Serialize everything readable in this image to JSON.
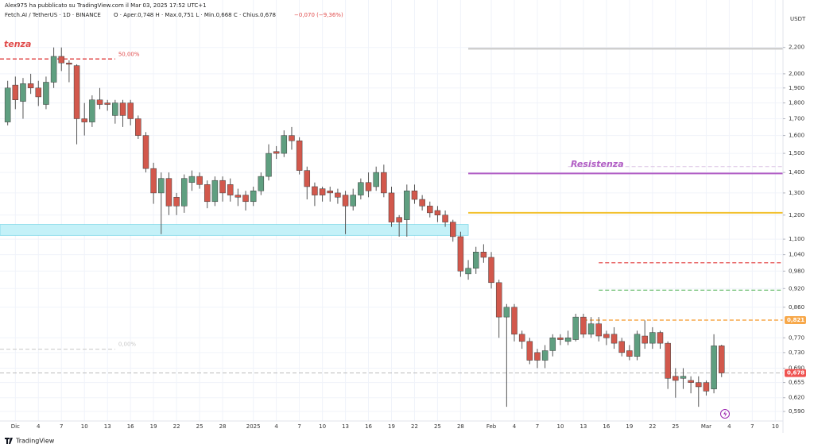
{
  "header": {
    "publisher": "Alex975 ha pubblicato su TradingView.com il Mar 03, 2025 17:52 UTC+1",
    "symbol": "Fetch.AI / TetherUS · 1D · BINANCE",
    "ohlc": "O · Aper.0,748  H · Max.0,751  L · Min.0,668  C · Chius.0,678",
    "change": "−0,070 (−9,36%)"
  },
  "footer": "TradingView",
  "chart_data": {
    "type": "candlestick",
    "log_scale": true,
    "grid": true,
    "currency": "USDT",
    "up_color": "#5f9f80",
    "down_color": "#d2584c",
    "wick_color": "#555555",
    "x": [
      "2024-11-30",
      "2024-12-01",
      "2024-12-02",
      "2024-12-03",
      "2024-12-04",
      "2024-12-05",
      "2024-12-06",
      "2024-12-07",
      "2024-12-08",
      "2024-12-09",
      "2024-12-10",
      "2024-12-11",
      "2024-12-12",
      "2024-12-13",
      "2024-12-14",
      "2024-12-15",
      "2024-12-16",
      "2024-12-17",
      "2024-12-18",
      "2024-12-19",
      "2024-12-20",
      "2024-12-21",
      "2024-12-22",
      "2024-12-23",
      "2024-12-24",
      "2024-12-25",
      "2024-12-26",
      "2024-12-27",
      "2024-12-28",
      "2024-12-29",
      "2024-12-30",
      "2024-12-31",
      "2025-01-01",
      "2025-01-02",
      "2025-01-03",
      "2025-01-04",
      "2025-01-05",
      "2025-01-06",
      "2025-01-07",
      "2025-01-08",
      "2025-01-09",
      "2025-01-10",
      "2025-01-11",
      "2025-01-12",
      "2025-01-13",
      "2025-01-14",
      "2025-01-15",
      "2025-01-16",
      "2025-01-17",
      "2025-01-18",
      "2025-01-19",
      "2025-01-20",
      "2025-01-21",
      "2025-01-22",
      "2025-01-23",
      "2025-01-24",
      "2025-01-25",
      "2025-01-26",
      "2025-01-27",
      "2025-01-28",
      "2025-01-29",
      "2025-01-30",
      "2025-01-31",
      "2025-02-01",
      "2025-02-02",
      "2025-02-03",
      "2025-02-04",
      "2025-02-05",
      "2025-02-06",
      "2025-02-07",
      "2025-02-08",
      "2025-02-09",
      "2025-02-10",
      "2025-02-11",
      "2025-02-12",
      "2025-02-13",
      "2025-02-14",
      "2025-02-15",
      "2025-02-16",
      "2025-02-17",
      "2025-02-18",
      "2025-02-19",
      "2025-02-20",
      "2025-02-21",
      "2025-02-22",
      "2025-02-23",
      "2025-02-24",
      "2025-02-25",
      "2025-02-26",
      "2025-02-27",
      "2025-02-28",
      "2025-03-01",
      "2025-03-02",
      "2025-03-03"
    ],
    "open": [
      1.68,
      1.92,
      1.81,
      1.93,
      1.9,
      1.79,
      1.94,
      2.13,
      2.08,
      2.06,
      1.7,
      1.68,
      1.82,
      1.8,
      1.72,
      1.8,
      1.8,
      1.7,
      1.6,
      1.42,
      1.3,
      1.37,
      1.28,
      1.24,
      1.35,
      1.38,
      1.34,
      1.26,
      1.36,
      1.34,
      1.29,
      1.29,
      1.26,
      1.31,
      1.38,
      1.51,
      1.5,
      1.6,
      1.57,
      1.41,
      1.33,
      1.32,
      1.31,
      1.3,
      1.29,
      1.24,
      1.29,
      1.35,
      1.33,
      1.4,
      1.3,
      1.19,
      1.18,
      1.31,
      1.27,
      1.24,
      1.22,
      1.2,
      1.17,
      1.11,
      0.97,
      0.99,
      1.05,
      1.03,
      0.94,
      0.83,
      0.86,
      0.78,
      0.76,
      0.73,
      0.71,
      0.735,
      0.77,
      0.76,
      0.765,
      0.83,
      0.78,
      0.81,
      0.78,
      0.78,
      0.76,
      0.735,
      0.72,
      0.775,
      0.755,
      0.785,
      0.755,
      0.67,
      0.665,
      0.66,
      0.655,
      0.655,
      0.64,
      0.748
    ],
    "high": [
      1.95,
      1.98,
      1.97,
      2.0,
      1.95,
      1.98,
      2.2,
      2.2,
      2.1,
      2.07,
      1.8,
      1.85,
      1.9,
      1.82,
      1.82,
      1.82,
      1.82,
      1.72,
      1.62,
      1.45,
      1.4,
      1.4,
      1.3,
      1.39,
      1.41,
      1.4,
      1.36,
      1.38,
      1.38,
      1.37,
      1.32,
      1.31,
      1.33,
      1.4,
      1.55,
      1.54,
      1.63,
      1.65,
      1.59,
      1.43,
      1.35,
      1.33,
      1.33,
      1.32,
      1.31,
      1.32,
      1.37,
      1.4,
      1.43,
      1.44,
      1.33,
      1.2,
      1.34,
      1.34,
      1.29,
      1.26,
      1.24,
      1.22,
      1.18,
      1.13,
      1.02,
      1.07,
      1.08,
      1.05,
      0.95,
      0.87,
      0.87,
      0.79,
      0.77,
      0.74,
      0.75,
      0.78,
      0.78,
      0.79,
      0.84,
      0.84,
      0.83,
      0.83,
      0.79,
      0.8,
      0.77,
      0.75,
      0.79,
      0.82,
      0.8,
      0.79,
      0.76,
      0.69,
      0.69,
      0.67,
      0.67,
      0.66,
      0.78,
      0.751
    ],
    "low": [
      1.66,
      1.76,
      1.7,
      1.86,
      1.78,
      1.76,
      1.9,
      2.02,
      1.94,
      1.55,
      1.6,
      1.65,
      1.76,
      1.75,
      1.67,
      1.65,
      1.66,
      1.58,
      1.4,
      1.25,
      1.12,
      1.2,
      1.2,
      1.21,
      1.31,
      1.32,
      1.23,
      1.24,
      1.26,
      1.26,
      1.24,
      1.22,
      1.24,
      1.29,
      1.36,
      1.47,
      1.48,
      1.52,
      1.39,
      1.27,
      1.24,
      1.26,
      1.26,
      1.25,
      1.12,
      1.22,
      1.27,
      1.28,
      1.31,
      1.28,
      1.15,
      1.11,
      1.11,
      1.25,
      1.22,
      1.19,
      1.17,
      1.15,
      1.09,
      0.96,
      0.95,
      0.97,
      1.01,
      0.92,
      0.77,
      0.6,
      0.76,
      0.74,
      0.7,
      0.69,
      0.69,
      0.72,
      0.75,
      0.75,
      0.76,
      0.77,
      0.77,
      0.76,
      0.75,
      0.74,
      0.72,
      0.71,
      0.71,
      0.74,
      0.74,
      0.74,
      0.64,
      0.62,
      0.64,
      0.63,
      0.6,
      0.625,
      0.63,
      0.668
    ],
    "close": [
      1.9,
      1.82,
      1.93,
      1.9,
      1.84,
      1.94,
      2.13,
      2.08,
      2.07,
      1.7,
      1.68,
      1.82,
      1.79,
      1.79,
      1.8,
      1.72,
      1.7,
      1.6,
      1.42,
      1.3,
      1.37,
      1.24,
      1.24,
      1.37,
      1.38,
      1.34,
      1.26,
      1.36,
      1.3,
      1.29,
      1.28,
      1.26,
      1.31,
      1.38,
      1.5,
      1.5,
      1.6,
      1.57,
      1.41,
      1.33,
      1.29,
      1.29,
      1.3,
      1.28,
      1.24,
      1.29,
      1.35,
      1.31,
      1.4,
      1.3,
      1.17,
      1.17,
      1.31,
      1.27,
      1.24,
      1.21,
      1.2,
      1.17,
      1.11,
      0.98,
      0.99,
      1.05,
      1.03,
      0.94,
      0.83,
      0.86,
      0.78,
      0.76,
      0.71,
      0.71,
      0.735,
      0.77,
      0.765,
      0.77,
      0.83,
      0.78,
      0.81,
      0.775,
      0.77,
      0.755,
      0.73,
      0.72,
      0.78,
      0.755,
      0.785,
      0.755,
      0.665,
      0.66,
      0.67,
      0.655,
      0.645,
      0.635,
      0.748,
      0.678
    ],
    "xlim": [
      "2024-11-29",
      "2025-03-11"
    ],
    "xticks": [
      {
        "value": "2024-12-01",
        "label": "Dic"
      },
      {
        "value": "2024-12-04",
        "label": "4"
      },
      {
        "value": "2024-12-07",
        "label": "7"
      },
      {
        "value": "2024-12-10",
        "label": "10"
      },
      {
        "value": "2024-12-13",
        "label": "13"
      },
      {
        "value": "2024-12-16",
        "label": "16"
      },
      {
        "value": "2024-12-19",
        "label": "19"
      },
      {
        "value": "2024-12-22",
        "label": "22"
      },
      {
        "value": "2024-12-25",
        "label": "25"
      },
      {
        "value": "2024-12-28",
        "label": "28"
      },
      {
        "value": "2025-01-01",
        "label": "2025"
      },
      {
        "value": "2025-01-04",
        "label": "4"
      },
      {
        "value": "2025-01-07",
        "label": "7"
      },
      {
        "value": "2025-01-10",
        "label": "10"
      },
      {
        "value": "2025-01-13",
        "label": "13"
      },
      {
        "value": "2025-01-16",
        "label": "16"
      },
      {
        "value": "2025-01-19",
        "label": "19"
      },
      {
        "value": "2025-01-22",
        "label": "22"
      },
      {
        "value": "2025-01-25",
        "label": "25"
      },
      {
        "value": "2025-01-28",
        "label": "28"
      },
      {
        "value": "2025-02-01",
        "label": "Feb"
      },
      {
        "value": "2025-02-04",
        "label": "4"
      },
      {
        "value": "2025-02-07",
        "label": "7"
      },
      {
        "value": "2025-02-10",
        "label": "10"
      },
      {
        "value": "2025-02-13",
        "label": "13"
      },
      {
        "value": "2025-02-16",
        "label": "16"
      },
      {
        "value": "2025-02-19",
        "label": "19"
      },
      {
        "value": "2025-02-22",
        "label": "22"
      },
      {
        "value": "2025-02-25",
        "label": "25"
      },
      {
        "value": "2025-03-01",
        "label": "Mar"
      },
      {
        "value": "2025-03-04",
        "label": "4"
      },
      {
        "value": "2025-03-07",
        "label": "7"
      },
      {
        "value": "2025-03-10",
        "label": "10"
      }
    ],
    "ylim": [
      0.57,
      2.48
    ],
    "yticks": [
      {
        "value": 2.2,
        "label": "2,200"
      },
      {
        "value": 2.0,
        "label": "2,000"
      },
      {
        "value": 1.9,
        "label": "1,900"
      },
      {
        "value": 1.8,
        "label": "1,800"
      },
      {
        "value": 1.7,
        "label": "1,700"
      },
      {
        "value": 1.6,
        "label": "1,600"
      },
      {
        "value": 1.5,
        "label": "1,500"
      },
      {
        "value": 1.4,
        "label": "1,400"
      },
      {
        "value": 1.3,
        "label": "1,300"
      },
      {
        "value": 1.2,
        "label": "1,200"
      },
      {
        "value": 1.1,
        "label": "1,100"
      },
      {
        "value": 1.04,
        "label": "1,040"
      },
      {
        "value": 0.98,
        "label": "0,980"
      },
      {
        "value": 0.92,
        "label": "0,920"
      },
      {
        "value": 0.86,
        "label": "0,860"
      },
      {
        "value": 0.77,
        "label": "0,770"
      },
      {
        "value": 0.73,
        "label": "0,730"
      },
      {
        "value": 0.69,
        "label": "0,690"
      },
      {
        "value": 0.655,
        "label": "0,655"
      },
      {
        "value": 0.62,
        "label": "0,620"
      },
      {
        "value": 0.59,
        "label": "0,590"
      }
    ],
    "band": {
      "low": 1.115,
      "high": 1.16,
      "from": "2024-11-29",
      "to": "2025-01-29",
      "color": "#c4f1f8",
      "edge": "#7fd9e8"
    },
    "lines": [
      {
        "value": 2.11,
        "color": "#e04b4b",
        "from": "2024-11-29",
        "to": "2024-12-14",
        "dash": true,
        "width": 1.5,
        "label": "50,00%"
      },
      {
        "value": 0.739,
        "color": "#c8c8c8",
        "from": "2024-11-29",
        "to": "2024-12-14",
        "dash": true,
        "width": 1,
        "label": "0,00%"
      },
      {
        "value": 2.19,
        "color": "#cfcfcf",
        "from": "2025-01-29",
        "to": "2025-03-11",
        "dash": false,
        "width": 2.5
      },
      {
        "value": 1.43,
        "color": "#dcc3e4",
        "from": "2025-02-11",
        "to": "2025-03-11",
        "dash": true,
        "width": 1
      },
      {
        "value": 1.395,
        "color": "#b05cc4",
        "from": "2025-01-29",
        "to": "2025-03-11",
        "dash": false,
        "width": 2
      },
      {
        "value": 1.21,
        "color": "#f2c12e",
        "from": "2025-01-29",
        "to": "2025-03-11",
        "dash": false,
        "width": 2
      },
      {
        "value": 1.01,
        "color": "#e86a6a",
        "from": "2025-02-15",
        "to": "2025-03-11",
        "dash": true,
        "width": 1.5
      },
      {
        "value": 0.915,
        "color": "#4caf50",
        "from": "2025-02-15",
        "to": "2025-03-11",
        "dash": true,
        "width": 1
      },
      {
        "value": 0.821,
        "color": "#f7a84a",
        "from": "2025-02-13",
        "to": "2025-03-11",
        "dash": true,
        "width": 1.5
      },
      {
        "value": 0.678,
        "color": "#b0b0b0",
        "from": "2024-11-29",
        "to": "2025-03-11",
        "dash": true,
        "width": 0.8
      }
    ],
    "price_tags": [
      {
        "value": 0.821,
        "label": "0,821",
        "color": "#f7a84a"
      },
      {
        "value": 0.678,
        "label": "0,678",
        "color": "#ef5350"
      }
    ],
    "annotations": [
      "tenza",
      "Resistenza"
    ]
  }
}
